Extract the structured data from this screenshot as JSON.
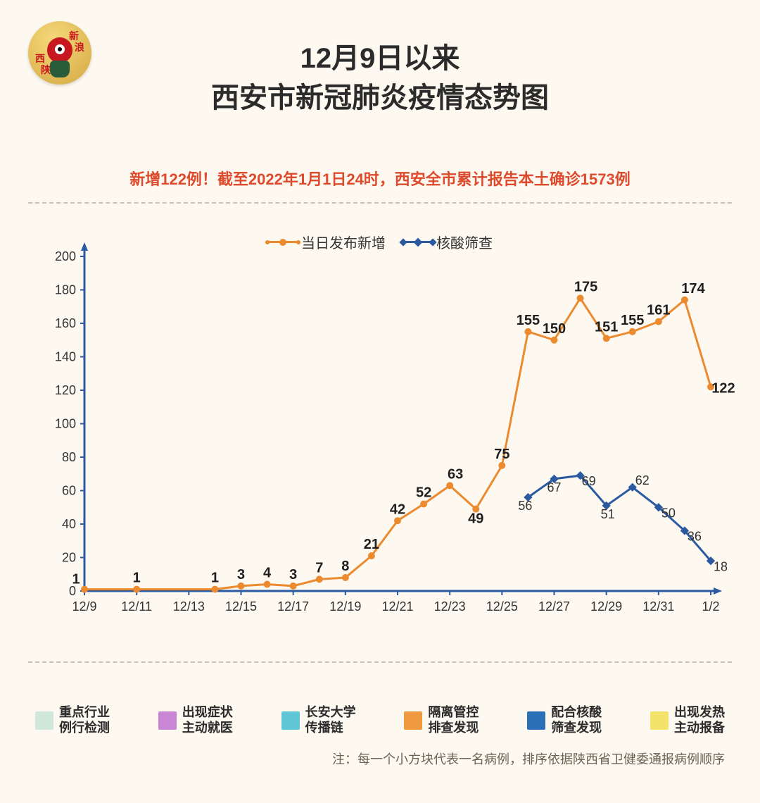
{
  "logo": {
    "line1top": "新",
    "line2top": "浪",
    "line1bot": "陕",
    "line2bot": "西"
  },
  "title": {
    "line1": "12月9日以来",
    "line2": "西安市新冠肺炎疫情态势图"
  },
  "subtitle": "新增122例！截至2022年1月1日24时，西安全市累计报告本土确诊1573例",
  "chart": {
    "type": "line",
    "background_color": "#fdf9f0",
    "axis_color": "#2c5aa0",
    "ylim": [
      0,
      200
    ],
    "ytick_step": 20,
    "yticks": [
      0,
      20,
      40,
      60,
      80,
      100,
      120,
      140,
      160,
      180,
      200
    ],
    "x_categories": [
      "12/9",
      "12/10",
      "12/11",
      "12/12",
      "12/13",
      "12/14",
      "12/15",
      "12/16",
      "12/17",
      "12/18",
      "12/19",
      "12/20",
      "12/21",
      "12/22",
      "12/23",
      "12/24",
      "12/25",
      "12/26",
      "12/27",
      "12/28",
      "12/29",
      "12/30",
      "12/31",
      "1/1",
      "1/2"
    ],
    "x_tick_labels": [
      "12/9",
      "12/11",
      "12/13",
      "12/15",
      "12/17",
      "12/19",
      "12/21",
      "12/23",
      "12/25",
      "12/27",
      "12/29",
      "12/31",
      "1/2"
    ],
    "x_tick_idx": [
      0,
      2,
      4,
      6,
      8,
      10,
      12,
      14,
      16,
      18,
      20,
      22,
      24
    ],
    "series": {
      "daily_new": {
        "label": "当日发布新增",
        "color": "#eb8a2e",
        "marker": "circle",
        "line_width": 3,
        "marker_size": 8,
        "values": [
          1,
          null,
          1,
          null,
          null,
          1,
          3,
          4,
          3,
          7,
          8,
          21,
          42,
          52,
          63,
          49,
          75,
          155,
          150,
          175,
          151,
          155,
          161,
          174,
          122
        ],
        "shown_labels_idx": [
          0,
          2,
          5,
          6,
          7,
          8,
          9,
          10,
          11,
          12,
          13,
          14,
          15,
          16,
          17,
          18,
          19,
          20,
          21,
          22,
          23,
          24
        ],
        "label_offsets": {
          "0": [
            -12,
            -8
          ],
          "14": [
            8,
            -10
          ],
          "15": [
            0,
            20
          ],
          "19": [
            8,
            -10
          ],
          "23": [
            12,
            -10
          ],
          "24": [
            18,
            8
          ]
        }
      },
      "nucleic_screen": {
        "label": "核酸筛查",
        "color": "#2c5aa0",
        "marker": "diamond",
        "line_width": 3,
        "marker_size": 8,
        "values": [
          null,
          null,
          null,
          null,
          null,
          null,
          null,
          null,
          null,
          null,
          null,
          null,
          null,
          null,
          null,
          null,
          null,
          56,
          67,
          69,
          51,
          62,
          50,
          36,
          18
        ],
        "shown_labels_idx": [
          17,
          18,
          19,
          20,
          21,
          22,
          23,
          24
        ],
        "label_offsets": {
          "17": [
            -4,
            18
          ],
          "18": [
            0,
            18
          ],
          "19": [
            12,
            14
          ],
          "20": [
            2,
            18
          ],
          "21": [
            14,
            -4
          ],
          "22": [
            14,
            14
          ],
          "23": [
            14,
            14
          ],
          "24": [
            14,
            14
          ]
        }
      }
    },
    "legend_font_size": 20,
    "axis_font_size": 18,
    "data_label_font_size": 20
  },
  "categories": [
    {
      "color": "#cfe8d9",
      "line1": "重点行业",
      "line2": "例行检测"
    },
    {
      "color": "#c986d4",
      "line1": "出现症状",
      "line2": "主动就医"
    },
    {
      "color": "#5fc6d6",
      "line1": "长安大学",
      "line2": "传播链"
    },
    {
      "color": "#ef9a3e",
      "line1": "隔离管控",
      "line2": "排查发现"
    },
    {
      "color": "#2a70b8",
      "line1": "配合核酸",
      "line2": "筛查发现"
    },
    {
      "color": "#f3e36b",
      "line1": "出现发热",
      "line2": "主动报备"
    }
  ],
  "footnote": "注：每一个小方块代表一名病例，排序依据陕西省卫健委通报病例顺序"
}
